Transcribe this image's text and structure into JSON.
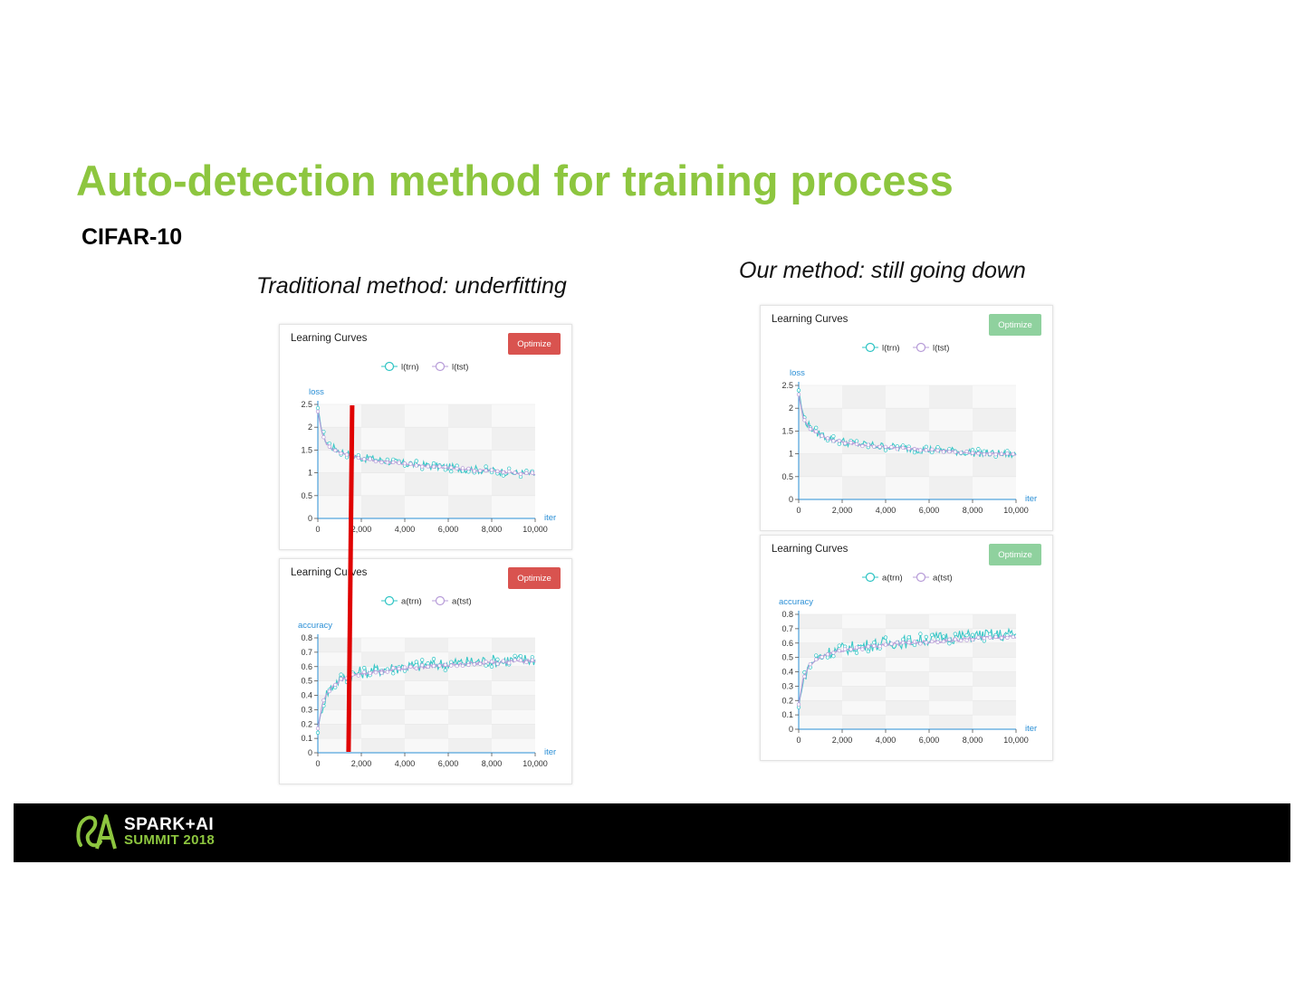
{
  "slide": {
    "title": "Auto-detection method for training process",
    "subtitle": "CIFAR-10",
    "caption_left": "Traditional method: underfitting",
    "caption_right": "Our method: still going down"
  },
  "footer": {
    "brand_line1": "SPARK+AI",
    "brand_line2": "SUMMIT 2018"
  },
  "colors": {
    "title_green": "#8dc63f",
    "train_series": "#2ec4c4",
    "test_series": "#b79cd8",
    "axis_blue": "#2a8fd6",
    "button_active": "#d9534f",
    "button_disabled": "#8fd19e",
    "marker_red": "#e00000"
  },
  "chart_data": [
    {
      "type": "line",
      "title": "Learning Curves",
      "button_label": "Optimize",
      "button_state": "active",
      "legend": [
        "l(trn)",
        "l(tst)"
      ],
      "ylabel": "loss",
      "xlabel": "iter",
      "xlim": [
        0,
        10000
      ],
      "ylim": [
        0,
        2.5
      ],
      "xticks": [
        "0",
        "2,000",
        "4,000",
        "6,000",
        "8,000",
        "10,000"
      ],
      "yticks": [
        "0",
        "0.5",
        "1",
        "1.5",
        "2",
        "2.5"
      ],
      "series": [
        {
          "name": "l(trn)",
          "x": [
            0,
            100,
            200,
            400,
            700,
            1000,
            1500,
            2000,
            3000,
            4000,
            5000,
            6000,
            7000,
            8000,
            9000,
            10000
          ],
          "values": [
            2.4,
            2.15,
            1.9,
            1.68,
            1.55,
            1.48,
            1.4,
            1.33,
            1.27,
            1.2,
            1.16,
            1.12,
            1.08,
            1.05,
            1.0,
            0.97
          ]
        },
        {
          "name": "l(tst)",
          "x": [
            0,
            100,
            200,
            400,
            700,
            1000,
            1500,
            2000,
            3000,
            4000,
            5000,
            6000,
            7000,
            8000,
            9000,
            10000
          ],
          "values": [
            2.35,
            2.1,
            1.85,
            1.64,
            1.52,
            1.45,
            1.38,
            1.31,
            1.25,
            1.19,
            1.15,
            1.11,
            1.07,
            1.04,
            1.0,
            0.98
          ]
        }
      ],
      "grid": true,
      "marker_line_x": 1600
    },
    {
      "type": "line",
      "title": "Learning Curves",
      "button_label": "Optimize",
      "button_state": "active",
      "legend": [
        "a(trn)",
        "a(tst)"
      ],
      "ylabel": "accuracy",
      "xlabel": "iter",
      "xlim": [
        0,
        10000
      ],
      "ylim": [
        0,
        0.8
      ],
      "xticks": [
        "0",
        "2,000",
        "4,000",
        "6,000",
        "8,000",
        "10,000"
      ],
      "yticks": [
        "0",
        "0.1",
        "0.2",
        "0.3",
        "0.4",
        "0.5",
        "0.6",
        "0.7",
        "0.8"
      ],
      "series": [
        {
          "name": "a(trn)",
          "x": [
            0,
            100,
            200,
            400,
            700,
            1000,
            1500,
            2000,
            3000,
            4000,
            5000,
            6000,
            7000,
            8000,
            9000,
            10000
          ],
          "values": [
            0.15,
            0.24,
            0.32,
            0.41,
            0.47,
            0.51,
            0.54,
            0.56,
            0.58,
            0.6,
            0.61,
            0.62,
            0.63,
            0.64,
            0.645,
            0.65
          ]
        },
        {
          "name": "a(tst)",
          "x": [
            0,
            100,
            200,
            400,
            700,
            1000,
            1500,
            2000,
            3000,
            4000,
            5000,
            6000,
            7000,
            8000,
            9000,
            10000
          ],
          "values": [
            0.17,
            0.25,
            0.33,
            0.41,
            0.47,
            0.5,
            0.53,
            0.55,
            0.57,
            0.59,
            0.6,
            0.61,
            0.62,
            0.63,
            0.635,
            0.64
          ]
        }
      ],
      "grid": true,
      "marker_line_x": 1600
    },
    {
      "type": "line",
      "title": "Learning Curves",
      "button_label": "Optimize",
      "button_state": "disabled",
      "legend": [
        "l(trn)",
        "l(tst)"
      ],
      "ylabel": "loss",
      "xlabel": "iter",
      "xlim": [
        0,
        10000
      ],
      "ylim": [
        0,
        2.5
      ],
      "xticks": [
        "0",
        "2,000",
        "4,000",
        "6,000",
        "8,000",
        "10,000"
      ],
      "yticks": [
        "0",
        "0.5",
        "1",
        "1.5",
        "2",
        "2.5"
      ],
      "series": [
        {
          "name": "l(trn)",
          "x": [
            0,
            100,
            200,
            400,
            700,
            1000,
            1500,
            2000,
            3000,
            4000,
            5000,
            6000,
            7000,
            8000,
            9000,
            10000
          ],
          "values": [
            2.4,
            2.1,
            1.85,
            1.65,
            1.52,
            1.42,
            1.33,
            1.27,
            1.2,
            1.16,
            1.12,
            1.09,
            1.06,
            1.03,
            1.0,
            0.98
          ]
        },
        {
          "name": "l(tst)",
          "x": [
            0,
            100,
            200,
            400,
            700,
            1000,
            1500,
            2000,
            3000,
            4000,
            5000,
            6000,
            7000,
            8000,
            9000,
            10000
          ],
          "values": [
            2.3,
            2.05,
            1.82,
            1.62,
            1.5,
            1.4,
            1.31,
            1.25,
            1.19,
            1.15,
            1.11,
            1.08,
            1.05,
            1.02,
            1.0,
            0.99
          ]
        }
      ],
      "grid": true
    },
    {
      "type": "line",
      "title": "Learning Curves",
      "button_label": "Optimize",
      "button_state": "disabled",
      "legend": [
        "a(trn)",
        "a(tst)"
      ],
      "ylabel": "accuracy",
      "xlabel": "iter",
      "xlim": [
        0,
        10000
      ],
      "ylim": [
        0,
        0.8
      ],
      "xticks": [
        "0",
        "2,000",
        "4,000",
        "6,000",
        "8,000",
        "10,000"
      ],
      "yticks": [
        "0",
        "0.1",
        "0.2",
        "0.3",
        "0.4",
        "0.5",
        "0.6",
        "0.7",
        "0.8"
      ],
      "series": [
        {
          "name": "a(trn)",
          "x": [
            0,
            100,
            200,
            400,
            700,
            1000,
            1500,
            2000,
            3000,
            4000,
            5000,
            6000,
            7000,
            8000,
            9000,
            10000
          ],
          "values": [
            0.15,
            0.25,
            0.33,
            0.42,
            0.48,
            0.51,
            0.54,
            0.56,
            0.58,
            0.6,
            0.61,
            0.63,
            0.64,
            0.65,
            0.655,
            0.66
          ]
        },
        {
          "name": "a(tst)",
          "x": [
            0,
            100,
            200,
            400,
            700,
            1000,
            1500,
            2000,
            3000,
            4000,
            5000,
            6000,
            7000,
            8000,
            9000,
            10000
          ],
          "values": [
            0.17,
            0.26,
            0.34,
            0.42,
            0.47,
            0.5,
            0.53,
            0.55,
            0.57,
            0.59,
            0.6,
            0.61,
            0.62,
            0.63,
            0.64,
            0.645
          ]
        }
      ],
      "grid": true
    }
  ]
}
